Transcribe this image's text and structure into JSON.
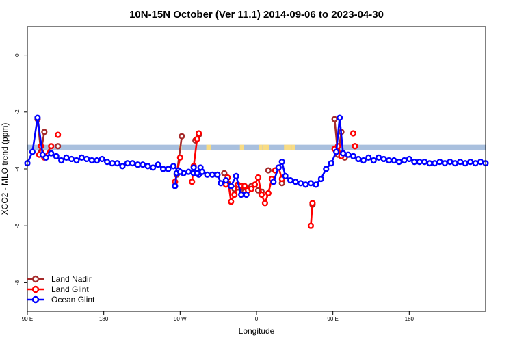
{
  "chart_data": {
    "type": "line",
    "title": "10N-15N October (Ver 11.1)   2014-09-06 to 2023-04-30",
    "xlabel": "Longitude",
    "ylabel": "XCO2 - MLO trend (ppm)",
    "xlim": [
      -90,
      180
    ],
    "ylim": [
      -9,
      1
    ],
    "x_ticks": [
      {
        "value": -90,
        "label": "90 E"
      },
      {
        "value": -45,
        "label": "180"
      },
      {
        "value": 0,
        "label": "90 W"
      },
      {
        "value": 45,
        "label": "0"
      },
      {
        "value": 90,
        "label": "90 E"
      },
      {
        "value": 135,
        "label": "180"
      }
    ],
    "y_ticks": [
      {
        "value": 0,
        "label": "0"
      },
      {
        "value": -2,
        "label": "-2"
      },
      {
        "value": -4,
        "label": "-4"
      },
      {
        "value": -6,
        "label": "-6"
      },
      {
        "value": -8,
        "label": "-8"
      }
    ],
    "land_band": {
      "y_top": -3.15,
      "y_bottom": -3.35,
      "color": "#a9c0de",
      "land_color": "#f8dc85",
      "land_segments": [
        [
          -0.7,
          0.9
        ],
        [
          15.4,
          18.3
        ],
        [
          35.2,
          37.6
        ],
        [
          46.5,
          48.5
        ],
        [
          49.0,
          52.5
        ],
        [
          61.2,
          65.4
        ],
        [
          65.6,
          67.6
        ]
      ]
    },
    "legend_position": "bottom-left",
    "series": [
      {
        "name": "Land Nadir",
        "color": "#a52a2a",
        "segments": [
          [
            [
              -84,
              -2.25
            ],
            [
              -82,
              -3.4
            ],
            [
              -80,
              -2.7
            ]
          ],
          [
            [
              -72,
              -3.2
            ]
          ],
          [
            [
              -2,
              -4.2
            ],
            [
              1,
              -2.85
            ]
          ],
          [
            [
              9,
              -3.0
            ],
            [
              11,
              -2.8
            ]
          ],
          [
            [
              26,
              -4.15
            ]
          ],
          [
            [
              28,
              -4.5
            ]
          ],
          [
            [
              30,
              -4.6
            ]
          ],
          [
            [
              32,
              -4.7
            ]
          ],
          [
            [
              34,
              -4.65
            ]
          ],
          [
            [
              36,
              -4.65
            ]
          ],
          [
            [
              38,
              -4.8
            ]
          ],
          [
            [
              40,
              -4.7
            ]
          ],
          [
            [
              42,
              -4.6
            ]
          ],
          [
            [
              46,
              -4.75
            ]
          ],
          [
            [
              48,
              -4.8
            ]
          ],
          [
            [
              52,
              -4.05
            ]
          ],
          [
            [
              60,
              -4.5
            ]
          ],
          [
            [
              78,
              -5.25
            ]
          ],
          [
            [
              91,
              -2.25
            ],
            [
              93,
              -3.5
            ],
            [
              95,
              -2.7
            ]
          ],
          [
            [
              97,
              -3.6
            ]
          ],
          [
            [
              103,
              -3.2
            ]
          ]
        ]
      },
      {
        "name": "Land Glint",
        "color": "#ff0000",
        "segments": [
          [
            [
              -83,
              -3.5
            ],
            [
              -82,
              -3.2
            ],
            [
              -80,
              -3.6
            ],
            [
              -76,
              -3.2
            ]
          ],
          [
            [
              -72,
              -2.8
            ]
          ],
          [
            [
              -3,
              -4.45
            ],
            [
              0,
              -3.6
            ]
          ],
          [
            [
              7,
              -4.45
            ],
            [
              8,
              -3.9
            ],
            [
              10,
              -2.95
            ],
            [
              11,
              -2.75
            ]
          ],
          [
            [
              27,
              -4.55
            ],
            [
              28,
              -4.3
            ],
            [
              30,
              -5.15
            ],
            [
              32,
              -4.9
            ],
            [
              34,
              -4.55
            ],
            [
              36,
              -4.6
            ],
            [
              38,
              -4.6
            ],
            [
              40,
              -4.75
            ],
            [
              42,
              -4.7
            ],
            [
              44,
              -4.55
            ],
            [
              46,
              -4.3
            ],
            [
              48,
              -4.9
            ],
            [
              50,
              -5.2
            ],
            [
              52,
              -4.85
            ],
            [
              54,
              -4.35
            ]
          ],
          [
            [
              56,
              -4.05
            ],
            [
              58,
              -3.95
            ],
            [
              60,
              -4.35
            ]
          ],
          [
            [
              77,
              -6.0
            ],
            [
              78,
              -5.2
            ]
          ],
          [
            [
              91,
              -3.3
            ],
            [
              93,
              -3.2
            ],
            [
              95,
              -3.55
            ]
          ],
          [
            [
              102,
              -2.75
            ]
          ],
          [
            [
              103,
              -3.2
            ]
          ]
        ]
      },
      {
        "name": "Ocean Glint",
        "color": "#0000ff",
        "segments": [
          [
            [
              -90,
              -3.8
            ],
            [
              -87,
              -3.4
            ],
            [
              -84,
              -2.2
            ],
            [
              -81,
              -3.5
            ],
            [
              -79,
              -3.6
            ],
            [
              -76,
              -3.45
            ],
            [
              -73,
              -3.55
            ],
            [
              -70,
              -3.7
            ],
            [
              -67,
              -3.6
            ],
            [
              -64,
              -3.65
            ],
            [
              -61,
              -3.7
            ],
            [
              -58,
              -3.6
            ],
            [
              -55,
              -3.65
            ],
            [
              -52,
              -3.7
            ],
            [
              -49,
              -3.7
            ],
            [
              -46,
              -3.65
            ],
            [
              -43,
              -3.75
            ],
            [
              -40,
              -3.8
            ],
            [
              -37,
              -3.8
            ],
            [
              -34,
              -3.9
            ],
            [
              -31,
              -3.8
            ],
            [
              -28,
              -3.8
            ],
            [
              -25,
              -3.85
            ],
            [
              -22,
              -3.85
            ],
            [
              -19,
              -3.9
            ],
            [
              -16,
              -3.95
            ],
            [
              -13,
              -3.85
            ],
            [
              -10,
              -4.0
            ],
            [
              -7,
              -4.0
            ],
            [
              -4,
              -3.9
            ],
            [
              -1,
              -4.05
            ],
            [
              2,
              -4.15
            ],
            [
              5,
              -4.1
            ],
            [
              8,
              -4.15
            ],
            [
              11,
              -4.2
            ],
            [
              13,
              -4.1
            ]
          ],
          [
            [
              -3,
              -4.6
            ],
            [
              -2,
              -4.15
            ],
            [
              0,
              -4.1
            ]
          ],
          [
            [
              8,
              -3.95
            ],
            [
              10,
              -4.15
            ],
            [
              12,
              -3.95
            ]
          ],
          [
            [
              13,
              -4.1
            ],
            [
              16,
              -4.2
            ],
            [
              19,
              -4.2
            ],
            [
              22,
              -4.2
            ],
            [
              24,
              -4.5
            ],
            [
              27,
              -4.4
            ],
            [
              30,
              -4.6
            ],
            [
              33,
              -4.25
            ],
            [
              36,
              -4.9
            ],
            [
              39,
              -4.9
            ]
          ],
          [
            [
              55,
              -4.45
            ],
            [
              58,
              -3.95
            ],
            [
              60,
              -3.75
            ],
            [
              62,
              -4.25
            ],
            [
              65,
              -4.4
            ],
            [
              68,
              -4.45
            ],
            [
              71,
              -4.5
            ],
            [
              74,
              -4.55
            ],
            [
              77,
              -4.5
            ],
            [
              80,
              -4.55
            ],
            [
              83,
              -4.35
            ],
            [
              86,
              -4.0
            ],
            [
              89,
              -3.8
            ],
            [
              92,
              -3.4
            ],
            [
              94,
              -2.2
            ],
            [
              96,
              -3.45
            ],
            [
              99,
              -3.5
            ],
            [
              102,
              -3.55
            ],
            [
              105,
              -3.65
            ],
            [
              108,
              -3.7
            ],
            [
              111,
              -3.6
            ],
            [
              114,
              -3.7
            ],
            [
              117,
              -3.6
            ],
            [
              120,
              -3.65
            ],
            [
              123,
              -3.7
            ],
            [
              126,
              -3.7
            ],
            [
              129,
              -3.75
            ],
            [
              132,
              -3.7
            ],
            [
              135,
              -3.65
            ],
            [
              138,
              -3.75
            ],
            [
              141,
              -3.75
            ],
            [
              144,
              -3.75
            ],
            [
              147,
              -3.8
            ],
            [
              150,
              -3.8
            ],
            [
              153,
              -3.75
            ],
            [
              156,
              -3.8
            ],
            [
              159,
              -3.75
            ],
            [
              162,
              -3.8
            ],
            [
              165,
              -3.75
            ],
            [
              168,
              -3.8
            ],
            [
              171,
              -3.75
            ],
            [
              174,
              -3.8
            ],
            [
              177,
              -3.75
            ],
            [
              180,
              -3.8
            ]
          ]
        ]
      }
    ]
  }
}
